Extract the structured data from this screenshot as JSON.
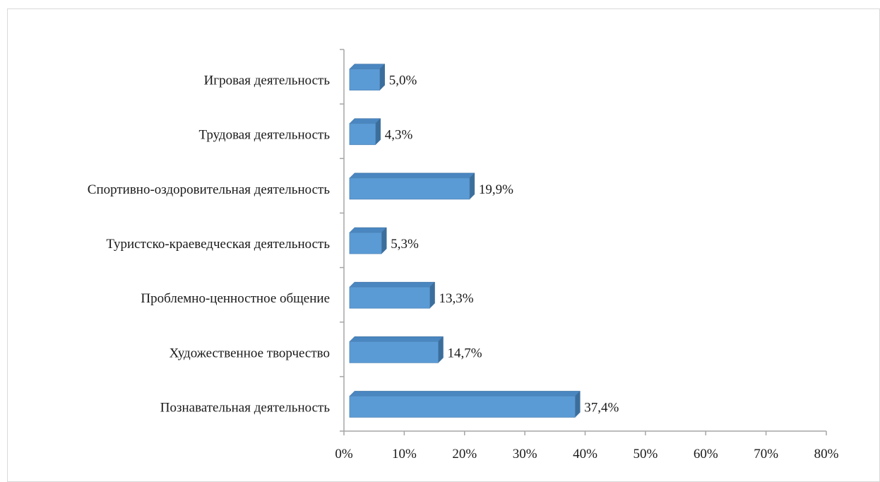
{
  "chart_data": {
    "type": "bar",
    "orientation": "horizontal",
    "style": "3d",
    "categories": [
      "Игровая деятельность",
      "Трудовая деятельность",
      "Спортивно-оздоровительная деятельность",
      "Туристско-краеведческая деятельность",
      "Проблемно-ценностное общение",
      "Художественное творчество",
      "Познавательная деятельность"
    ],
    "values": [
      5.0,
      4.3,
      19.9,
      5.3,
      13.3,
      14.7,
      37.4
    ],
    "data_labels": [
      "5,0%",
      "4,3%",
      "19,9%",
      "5,3%",
      "13,3%",
      "14,7%",
      "37,4%"
    ],
    "xlim": [
      0,
      80
    ],
    "xticks": [
      0,
      10,
      20,
      30,
      40,
      50,
      60,
      70,
      80
    ],
    "xtick_labels": [
      "0%",
      "10%",
      "20%",
      "30%",
      "40%",
      "50%",
      "60%",
      "70%",
      "80%"
    ],
    "grid": false,
    "legend": "none",
    "colors": {
      "bar_front": "#5b9bd5",
      "bar_top": "#4a86c0",
      "bar_side": "#3c6e9c",
      "axis": "#a6a6a6"
    }
  }
}
